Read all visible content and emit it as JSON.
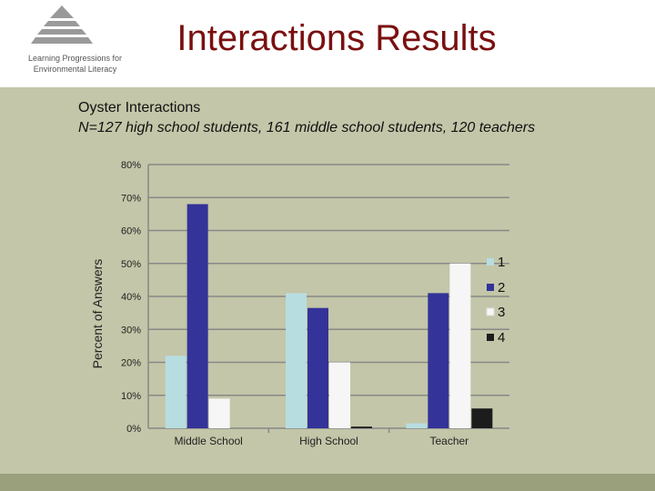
{
  "header": {
    "logo_lines": [
      "Learning Progressions for",
      "Environmental Literacy"
    ],
    "title": "Interactions Results"
  },
  "subtitle": {
    "line1": "Oyster Interactions",
    "line2": "N=127 high school students, 161 middle school students, 120 teachers"
  },
  "colors": {
    "series": [
      "#b7dde1",
      "#333399",
      "#f6f6f6",
      "#1c1c1c"
    ],
    "title": "#7a1010",
    "background": "#c3c6a8",
    "gridline": "#888888"
  },
  "chart_data": {
    "type": "bar",
    "title": "",
    "xlabel": "",
    "ylabel": "Percent of Answers",
    "categories": [
      "Middle School",
      "High School",
      "Teacher"
    ],
    "ylim": [
      0,
      80
    ],
    "yticks": [
      0,
      10,
      20,
      30,
      40,
      50,
      60,
      70,
      80
    ],
    "ytick_labels": [
      "0%",
      "10%",
      "20%",
      "30%",
      "40%",
      "50%",
      "60%",
      "70%",
      "80%"
    ],
    "grid": true,
    "legend_position": "right",
    "series": [
      {
        "name": "1",
        "values": [
          22,
          41,
          1.5
        ]
      },
      {
        "name": "2",
        "values": [
          68,
          36.5,
          41
        ]
      },
      {
        "name": "3",
        "values": [
          9,
          20,
          50
        ]
      },
      {
        "name": "4",
        "values": [
          0,
          0.5,
          6
        ]
      }
    ]
  }
}
